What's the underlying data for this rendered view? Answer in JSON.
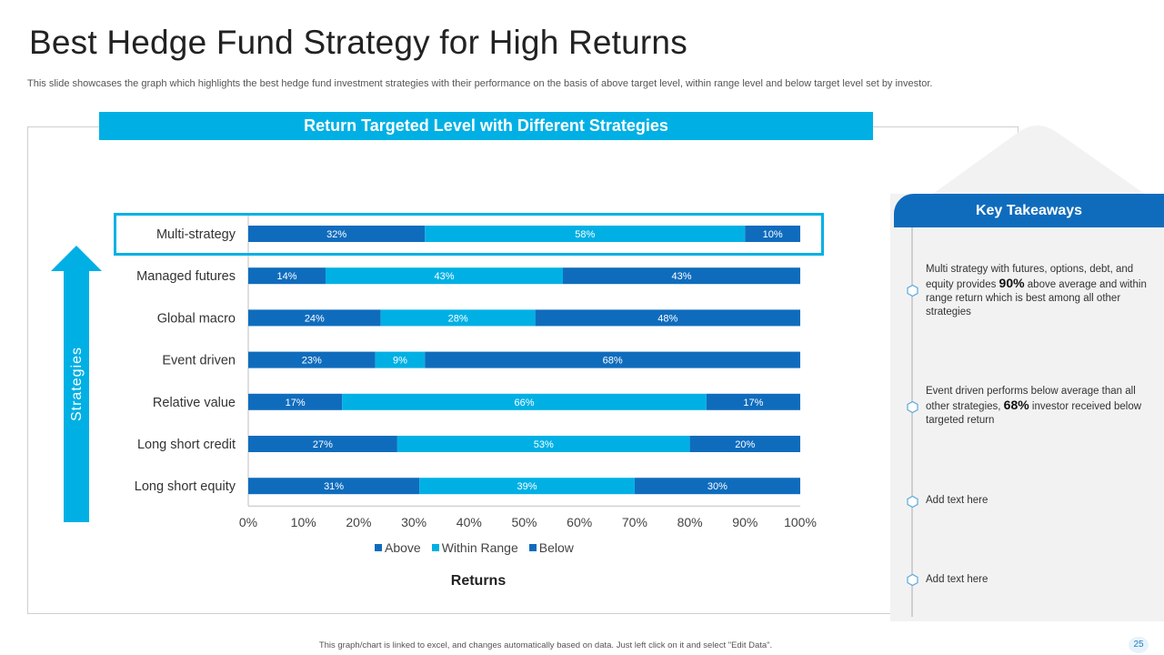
{
  "slide": {
    "title": "Best Hedge Fund Strategy for High Returns",
    "subtitle": "This slide showcases the graph which highlights the best hedge fund investment strategies with their performance on the basis of above target level, within range level and below target level set by investor.",
    "footer": "This graph/chart is linked to excel, and changes automatically based on data. Just left click on it and select \"Edit Data\".",
    "page_number": "25",
    "strategies_label": "Strategies"
  },
  "colors": {
    "above": "#0f6cbd",
    "within": "#00b0e4",
    "below": "#0f6cbd",
    "header": "#00b0e4",
    "takeaway_header": "#0f6cbd"
  },
  "chart_data": {
    "type": "bar",
    "orientation": "horizontal",
    "stacked": true,
    "title": "Return Targeted Level with Different Strategies",
    "xlabel": "Returns",
    "ylabel": "Strategies",
    "xlim": [
      0,
      100
    ],
    "x_ticks": [
      "0%",
      "10%",
      "20%",
      "30%",
      "40%",
      "50%",
      "60%",
      "70%",
      "80%",
      "90%",
      "100%"
    ],
    "categories": [
      "Multi-strategy",
      "Managed futures",
      "Global macro",
      "Event driven",
      "Relative value",
      "Long short credit",
      "Long short equity"
    ],
    "series": [
      {
        "name": "Above",
        "values": [
          32,
          14,
          24,
          23,
          17,
          27,
          31
        ]
      },
      {
        "name": "Within Range",
        "values": [
          58,
          43,
          28,
          9,
          66,
          53,
          39
        ]
      },
      {
        "name": "Below",
        "values": [
          10,
          43,
          48,
          68,
          17,
          20,
          30
        ]
      }
    ],
    "legend_position": "bottom",
    "highlighted_category": "Multi-strategy"
  },
  "takeaways": {
    "title": "Key Takeaways",
    "items": [
      {
        "before": "Multi strategy with futures, options, debt, and equity provides ",
        "highlight": "90%",
        "after": " above average and within range return which is best among all other strategies"
      },
      {
        "before": "Event driven performs below average than all other strategies, ",
        "highlight": "68%",
        "after": " investor received below targeted return"
      },
      {
        "before": "Add text here",
        "highlight": "",
        "after": ""
      },
      {
        "before": "Add text here",
        "highlight": "",
        "after": ""
      }
    ]
  }
}
